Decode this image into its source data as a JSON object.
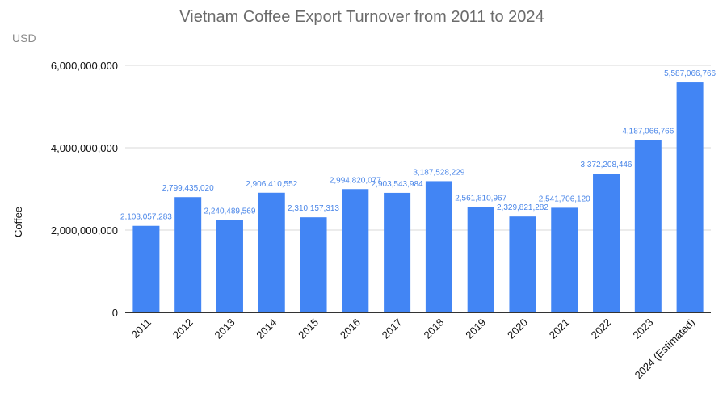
{
  "chart_data": {
    "type": "bar",
    "title": "Vietnam Coffee Export Turnover from 2011 to 2024",
    "unit_label": "USD",
    "ylabel": "Coffee",
    "xlabel": "",
    "ylim": [
      0,
      6000000000
    ],
    "yticks": [
      0,
      2000000000,
      4000000000,
      6000000000
    ],
    "ytick_labels": [
      "0",
      "2,000,000,000",
      "4,000,000,000",
      "6,000,000,000"
    ],
    "grid": true,
    "bar_color": "#4285f4",
    "label_color": "#4a86e8",
    "categories": [
      "2011",
      "2012",
      "2013",
      "2014",
      "2015",
      "2016",
      "2017",
      "2018",
      "2019",
      "2020",
      "2021",
      "2022",
      "2023",
      "2024 (Estimated)"
    ],
    "values": [
      2103057283,
      2799435020,
      2240489569,
      2906410552,
      2310157313,
      2994820077,
      2903543984,
      3187528229,
      2561810967,
      2329821282,
      2541706120,
      3372208446,
      4187066766,
      5587066766
    ],
    "value_labels": [
      "2,103,057,283",
      "2,799,435,020",
      "2,240,489,569",
      "2,906,410,552",
      "2,310,157,313",
      "2,994,820,077",
      "2,903,543,984",
      "3,187,528,229",
      "2,561,810,967",
      "2,329,821,282",
      "2,541,706,120",
      "3,372,208,446",
      "4,187,066,766",
      "5,587,066,766"
    ]
  }
}
